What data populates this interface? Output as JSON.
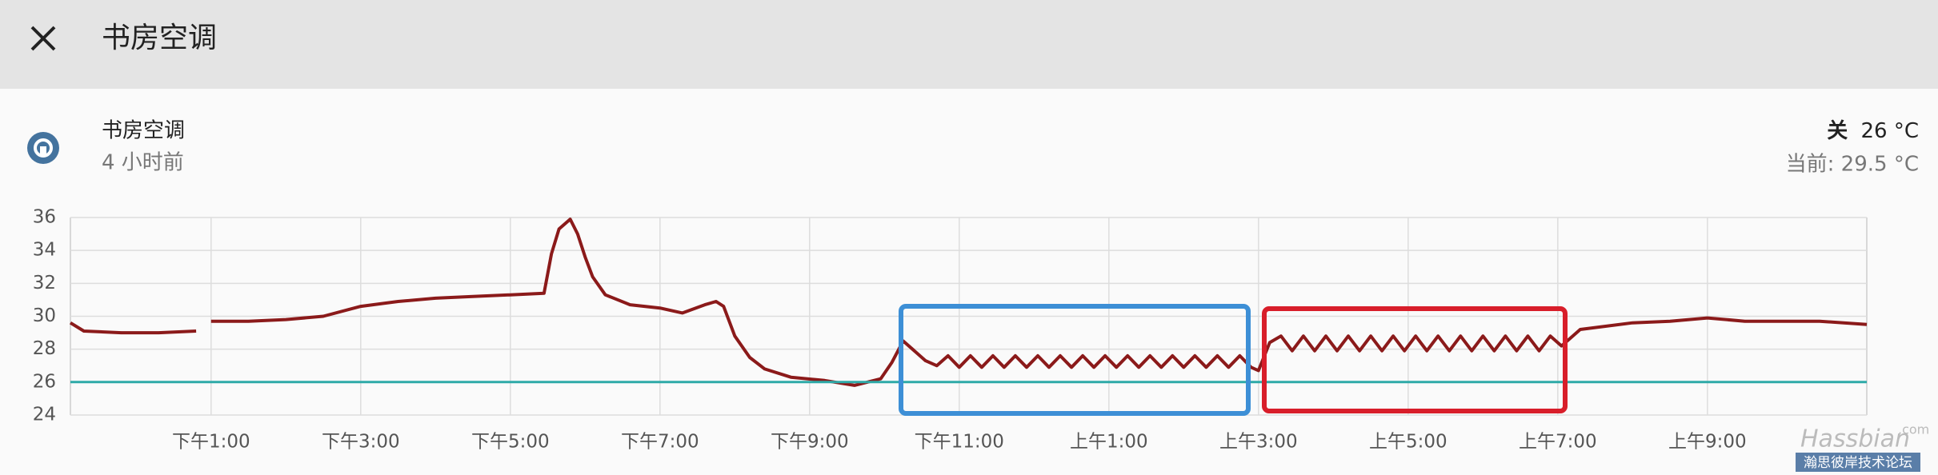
{
  "header": {
    "title": "书房空调"
  },
  "entity": {
    "name": "书房空调",
    "time": "4 小时前",
    "state": "关",
    "target": "26 °C",
    "current": "当前: 29.5 °C"
  },
  "watermark": {
    "brand": "Hassbian",
    "domain": ".com",
    "forum": "瀚思彼岸技术论坛"
  },
  "chart_data": {
    "type": "line",
    "x": [
      11.12,
      11.3,
      11.8,
      12.3,
      12.8,
      12.9,
      13.0,
      13.5,
      14.0,
      14.5,
      15.0,
      15.5,
      16.0,
      16.5,
      17.0,
      17.45,
      17.55,
      17.65,
      17.8,
      17.9,
      18.0,
      18.1,
      18.27,
      18.6,
      19.0,
      19.3,
      19.6,
      19.75,
      19.85,
      20.0,
      20.2,
      20.4,
      20.75,
      21.2,
      21.6,
      21.95,
      22.1,
      22.25,
      22.4,
      22.55,
      22.7,
      22.85,
      23.0,
      23.15,
      23.3,
      23.45,
      23.6,
      23.75,
      23.9,
      24.05,
      24.2,
      24.35,
      24.5,
      24.65,
      24.8,
      24.95,
      25.1,
      25.25,
      25.4,
      25.55,
      25.7,
      25.85,
      26.0,
      26.15,
      26.3,
      26.45,
      26.6,
      26.75,
      26.9,
      27.0,
      27.15,
      27.3,
      27.45,
      27.6,
      27.75,
      27.9,
      28.05,
      28.2,
      28.35,
      28.5,
      28.65,
      28.8,
      28.95,
      29.1,
      29.25,
      29.4,
      29.55,
      29.7,
      29.85,
      30.0,
      30.15,
      30.3,
      30.45,
      30.6,
      30.75,
      30.9,
      31.05,
      31.3,
      32.0,
      32.5,
      33.0,
      33.5,
      34.5,
      35.13
    ],
    "series": [
      {
        "color": "#8b1a1a",
        "values": [
          29.6,
          29.1,
          29.0,
          29.0,
          29.1,
          null,
          29.7,
          29.7,
          29.8,
          30.0,
          30.6,
          30.9,
          31.1,
          31.2,
          31.3,
          31.4,
          33.8,
          35.3,
          35.9,
          35.0,
          33.6,
          32.4,
          31.3,
          30.7,
          30.5,
          30.2,
          30.7,
          30.9,
          30.6,
          28.8,
          27.5,
          26.8,
          26.3,
          26.1,
          25.8,
          26.2,
          27.2,
          28.5,
          27.9,
          27.3,
          27.0,
          27.6,
          26.9,
          27.6,
          26.9,
          27.6,
          26.9,
          27.6,
          26.9,
          27.6,
          26.9,
          27.6,
          26.9,
          27.6,
          26.9,
          27.6,
          26.9,
          27.6,
          26.9,
          27.6,
          26.9,
          27.6,
          26.9,
          27.6,
          26.9,
          27.6,
          26.9,
          27.6,
          26.9,
          26.7,
          28.4,
          28.8,
          27.9,
          28.8,
          27.9,
          28.8,
          27.9,
          28.8,
          27.9,
          28.8,
          27.9,
          28.8,
          27.9,
          28.8,
          27.9,
          28.8,
          27.9,
          28.8,
          27.9,
          28.8,
          27.9,
          28.8,
          27.9,
          28.8,
          27.9,
          28.8,
          28.2,
          29.2,
          29.6,
          29.7,
          29.9,
          29.7,
          29.7,
          29.5
        ]
      },
      {
        "color": "#2eaaa8",
        "x": [
          11.12,
          35.13
        ],
        "values": [
          26,
          26
        ]
      }
    ],
    "xlim": [
      11.12,
      35.13
    ],
    "xticks": [
      {
        "value": 13,
        "label": "下午1:00"
      },
      {
        "value": 15,
        "label": "下午3:00"
      },
      {
        "value": 17,
        "label": "下午5:00"
      },
      {
        "value": 19,
        "label": "下午7:00"
      },
      {
        "value": 21,
        "label": "下午9:00"
      },
      {
        "value": 23,
        "label": "下午11:00"
      },
      {
        "value": 25,
        "label": "上午1:00"
      },
      {
        "value": 27,
        "label": "上午3:00"
      },
      {
        "value": 29,
        "label": "上午5:00"
      },
      {
        "value": 31,
        "label": "上午7:00"
      },
      {
        "value": 33,
        "label": "上午9:00"
      }
    ],
    "ylim": [
      24,
      36
    ],
    "yticks": [
      24,
      26,
      28,
      30,
      32,
      34,
      36
    ],
    "grid": true
  }
}
